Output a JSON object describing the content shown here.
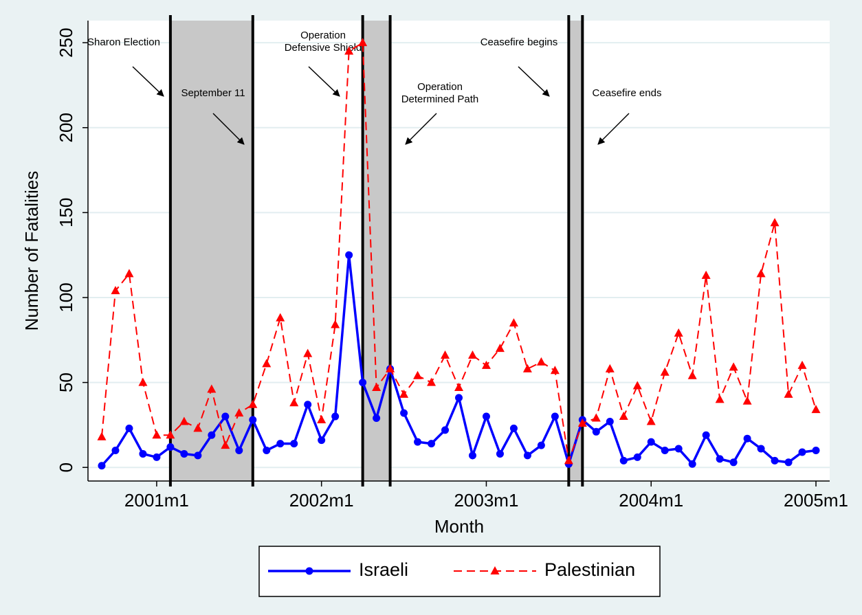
{
  "chart_data": {
    "type": "line",
    "xlabel": "Month",
    "ylabel": "Number of Fatalities",
    "x": [
      488,
      489,
      490,
      491,
      492,
      493,
      494,
      495,
      496,
      497,
      498,
      499,
      500,
      501,
      502,
      503,
      504,
      505,
      506,
      507,
      508,
      509,
      510,
      511,
      512,
      513,
      514,
      515,
      516,
      517,
      518,
      519,
      520,
      521,
      522,
      523,
      524,
      525,
      526,
      527,
      528,
      529,
      530,
      531,
      532,
      533,
      534,
      535,
      536,
      537,
      538,
      539,
      540
    ],
    "series": [
      {
        "name": "Israeli",
        "color": "#0000ff",
        "marker": "circle",
        "dash": false,
        "values": [
          1,
          10,
          23,
          8,
          6,
          12,
          8,
          7,
          19,
          30,
          10,
          28,
          10,
          14,
          14,
          37,
          16,
          30,
          125,
          50,
          29,
          58,
          32,
          15,
          14,
          22,
          41,
          7,
          30,
          8,
          23,
          7,
          13,
          30,
          2,
          28,
          21,
          27,
          4,
          6,
          15,
          10,
          11,
          2,
          19,
          5,
          3,
          17,
          11,
          4,
          3,
          9,
          10
        ]
      },
      {
        "name": "Palestinian",
        "color": "#ff0000",
        "marker": "triangle",
        "dash": true,
        "values": [
          18,
          104,
          114,
          50,
          19,
          19,
          27,
          23,
          46,
          13,
          32,
          37,
          61,
          88,
          38,
          67,
          28,
          84,
          245,
          250,
          47,
          58,
          43,
          54,
          50,
          66,
          47,
          66,
          60,
          70,
          85,
          58,
          62,
          57,
          4,
          26,
          29,
          58,
          30,
          48,
          27,
          56,
          79,
          54,
          113,
          40,
          59,
          39,
          114,
          144,
          43,
          60,
          34
        ]
      }
    ],
    "xlim": [
      487,
      541
    ],
    "xticks": [
      {
        "value": 492,
        "label": "2001m1"
      },
      {
        "value": 504,
        "label": "2002m1"
      },
      {
        "value": 516,
        "label": "2003m1"
      },
      {
        "value": 528,
        "label": "2004m1"
      },
      {
        "value": 540,
        "label": "2005m1"
      }
    ],
    "ylim": [
      -8,
      263
    ],
    "yticks": [
      0,
      50,
      100,
      150,
      200,
      250
    ],
    "grid": true,
    "events": [
      {
        "start": 493,
        "end": 499
      },
      {
        "start": 507,
        "end": 509
      },
      {
        "start": 522,
        "end": 523
      }
    ],
    "annotations": [
      {
        "lines": [
          "Sharon Election"
        ]
      },
      {
        "lines": [
          "September 11"
        ]
      },
      {
        "lines": [
          "Operation",
          "Defensive Shield"
        ]
      },
      {
        "lines": [
          "Operation",
          "Determined Path"
        ]
      },
      {
        "lines": [
          "Ceasefire begins"
        ]
      },
      {
        "lines": [
          "Ceasefire ends"
        ]
      }
    ]
  }
}
